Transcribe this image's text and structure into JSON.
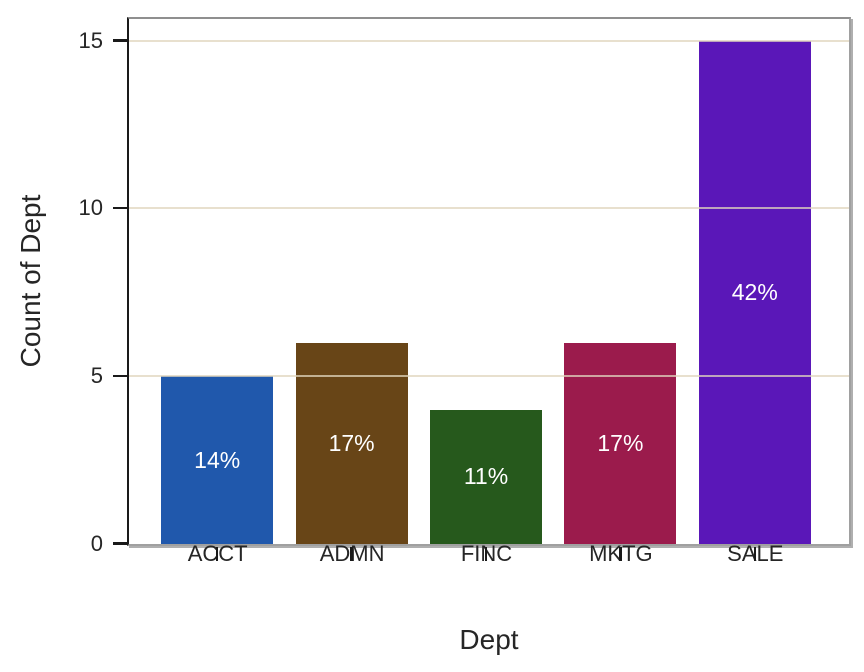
{
  "figure": {
    "background_color": "#ffffff",
    "text_color": "#262626"
  },
  "chart_data": {
    "type": "bar",
    "title": "",
    "xlabel": "Dept",
    "ylabel": "Count of Dept",
    "categories": [
      "ACCT",
      "ADMN",
      "FINC",
      "MKTG",
      "SALE"
    ],
    "values": [
      5,
      6,
      4,
      6,
      15
    ],
    "bar_labels": [
      "14%",
      "17%",
      "11%",
      "17%",
      "42%"
    ],
    "bar_colors": [
      "#2058ac",
      "#684517",
      "#26591c",
      "#9b1b4c",
      "#5a17b8"
    ],
    "bar_label_color": "#ffffff",
    "yticks": [
      "0",
      "5",
      "10",
      "15"
    ],
    "ytick_values": [
      0,
      5,
      10,
      15
    ],
    "gridline_values": [
      5,
      10,
      15
    ],
    "ylim": [
      0,
      15.7
    ],
    "grid_on": true,
    "grid_color": "rgba(224,214,190,0.75)",
    "legend": "none",
    "axis_colors": {
      "left_spine": "#1a1a1a",
      "frame": "#a0a0a0",
      "tick": "#1a1a1a"
    }
  }
}
